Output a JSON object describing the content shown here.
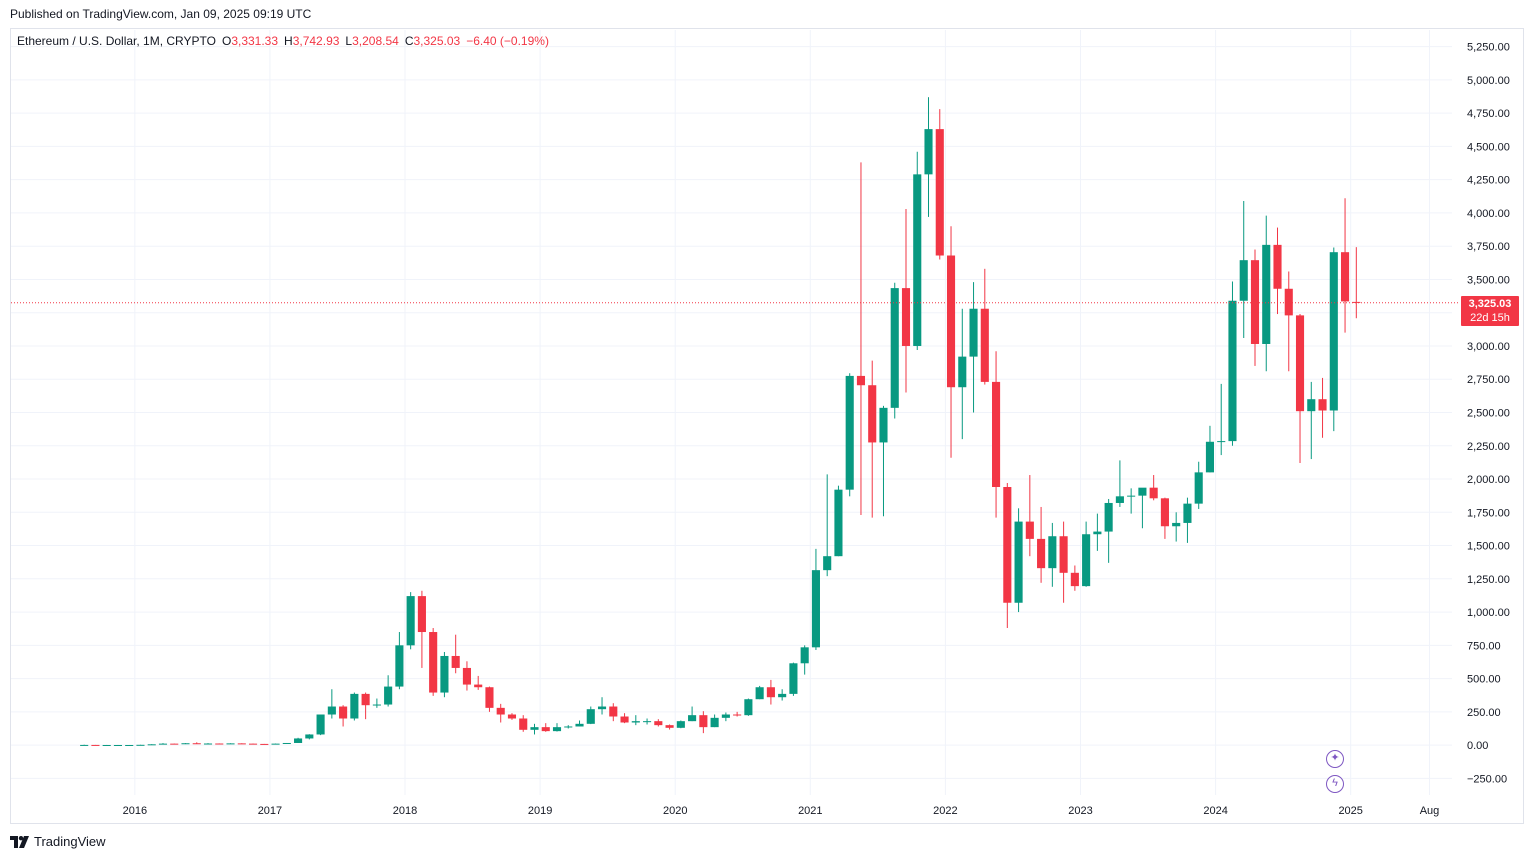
{
  "header": {
    "published": "Published on TradingView.com, Jan 09, 2025 09:19 UTC"
  },
  "legend": {
    "symbol": "Ethereum / U.S. Dollar, 1M, CRYPTO",
    "open_label": "O",
    "open": "3,331.33",
    "high_label": "H",
    "high": "3,742.93",
    "low_label": "L",
    "low": "3,208.54",
    "close_label": "C",
    "close": "3,325.03",
    "change": "−6.40 (−0.19%)"
  },
  "price_badge": {
    "price": "3,325.03",
    "countdown": "22d 15h"
  },
  "brand": {
    "name": "TradingView"
  },
  "icons": {
    "spark_button": "sparkle-icon",
    "lightning_button": "lightning-icon"
  },
  "colors": {
    "up": "#089981",
    "down": "#f23645",
    "grid": "#f0f3fa",
    "text": "#131722",
    "accent": "#7e57c2"
  },
  "chart_data": {
    "type": "candlestick",
    "title": "Ethereum / U.S. Dollar, 1M, CRYPTO",
    "grid": true,
    "ylim": [
      -375,
      5375
    ],
    "y_ticks": [
      -250,
      0,
      250,
      500,
      750,
      1000,
      1250,
      1500,
      1750,
      2000,
      2250,
      2500,
      2750,
      3000,
      3250,
      3500,
      3750,
      4000,
      4250,
      4500,
      4750,
      5000,
      5250
    ],
    "y_tick_labels": [
      "−250.00",
      "0.00",
      "250.00",
      "500.00",
      "750.00",
      "1,000.00",
      "1,250.00",
      "1,500.00",
      "1,750.00",
      "2,000.00",
      "2,250.00",
      "2,500.00",
      "2,750.00",
      "3,000.00",
      "3,250.00",
      "3,500.00",
      "3,750.00",
      "4,000.00",
      "4,250.00",
      "4,500.00",
      "4,750.00",
      "5,000.00",
      "5,250.00"
    ],
    "x_tick_labels": [
      "2016",
      "2017",
      "2018",
      "2019",
      "2020",
      "2021",
      "2022",
      "2023",
      "2024",
      "2025",
      "Aug"
    ],
    "x_tick_months": [
      "2016-01",
      "2017-01",
      "2018-01",
      "2019-01",
      "2020-01",
      "2021-01",
      "2022-01",
      "2023-01",
      "2024-01",
      "2025-01",
      "2025-08"
    ],
    "x_range": [
      "2015-02",
      "2025-10"
    ],
    "last_price": 3325.03,
    "candles": [
      {
        "t": "2015-08",
        "o": 1,
        "h": 3,
        "l": 0.4,
        "c": 1.4
      },
      {
        "t": "2015-09",
        "o": 1.4,
        "h": 1.4,
        "l": 0.5,
        "c": 0.7
      },
      {
        "t": "2015-10",
        "o": 0.7,
        "h": 1.2,
        "l": 0.4,
        "c": 0.9
      },
      {
        "t": "2015-11",
        "o": 0.9,
        "h": 1.1,
        "l": 0.8,
        "c": 0.9
      },
      {
        "t": "2015-12",
        "o": 0.9,
        "h": 1.0,
        "l": 0.8,
        "c": 0.9
      },
      {
        "t": "2016-01",
        "o": 0.9,
        "h": 2.5,
        "l": 0.9,
        "c": 2.2
      },
      {
        "t": "2016-02",
        "o": 2.2,
        "h": 7,
        "l": 2,
        "c": 6
      },
      {
        "t": "2016-03",
        "o": 6,
        "h": 15,
        "l": 6,
        "c": 11
      },
      {
        "t": "2016-04",
        "o": 11,
        "h": 12,
        "l": 7,
        "c": 9
      },
      {
        "t": "2016-05",
        "o": 9,
        "h": 15,
        "l": 8,
        "c": 14
      },
      {
        "t": "2016-06",
        "o": 14,
        "h": 21,
        "l": 11,
        "c": 12
      },
      {
        "t": "2016-07",
        "o": 12,
        "h": 15,
        "l": 10,
        "c": 12
      },
      {
        "t": "2016-08",
        "o": 12,
        "h": 13,
        "l": 10,
        "c": 11
      },
      {
        "t": "2016-09",
        "o": 11,
        "h": 14,
        "l": 11,
        "c": 13
      },
      {
        "t": "2016-10",
        "o": 13,
        "h": 14,
        "l": 10,
        "c": 11
      },
      {
        "t": "2016-11",
        "o": 11,
        "h": 12,
        "l": 8,
        "c": 9
      },
      {
        "t": "2016-12",
        "o": 9,
        "h": 9,
        "l": 6,
        "c": 8
      },
      {
        "t": "2017-01",
        "o": 8,
        "h": 12,
        "l": 8,
        "c": 11
      },
      {
        "t": "2017-02",
        "o": 11,
        "h": 16,
        "l": 10,
        "c": 16
      },
      {
        "t": "2017-03",
        "o": 16,
        "h": 55,
        "l": 16,
        "c": 50
      },
      {
        "t": "2017-04",
        "o": 50,
        "h": 82,
        "l": 43,
        "c": 80
      },
      {
        "t": "2017-05",
        "o": 80,
        "h": 230,
        "l": 75,
        "c": 230
      },
      {
        "t": "2017-06",
        "o": 230,
        "h": 420,
        "l": 200,
        "c": 290
      },
      {
        "t": "2017-07",
        "o": 290,
        "h": 300,
        "l": 140,
        "c": 200
      },
      {
        "t": "2017-08",
        "o": 200,
        "h": 395,
        "l": 185,
        "c": 385
      },
      {
        "t": "2017-09",
        "o": 385,
        "h": 395,
        "l": 195,
        "c": 300
      },
      {
        "t": "2017-10",
        "o": 300,
        "h": 350,
        "l": 280,
        "c": 305
      },
      {
        "t": "2017-11",
        "o": 305,
        "h": 525,
        "l": 290,
        "c": 440
      },
      {
        "t": "2017-12",
        "o": 440,
        "h": 850,
        "l": 420,
        "c": 750
      },
      {
        "t": "2018-01",
        "o": 750,
        "h": 1150,
        "l": 720,
        "c": 1120
      },
      {
        "t": "2018-02",
        "o": 1120,
        "h": 1160,
        "l": 580,
        "c": 850
      },
      {
        "t": "2018-03",
        "o": 850,
        "h": 880,
        "l": 370,
        "c": 395
      },
      {
        "t": "2018-04",
        "o": 395,
        "h": 700,
        "l": 360,
        "c": 670
      },
      {
        "t": "2018-05",
        "o": 670,
        "h": 830,
        "l": 540,
        "c": 580
      },
      {
        "t": "2018-06",
        "o": 580,
        "h": 630,
        "l": 410,
        "c": 455
      },
      {
        "t": "2018-07",
        "o": 455,
        "h": 520,
        "l": 415,
        "c": 435
      },
      {
        "t": "2018-08",
        "o": 435,
        "h": 440,
        "l": 250,
        "c": 280
      },
      {
        "t": "2018-09",
        "o": 280,
        "h": 310,
        "l": 170,
        "c": 230
      },
      {
        "t": "2018-10",
        "o": 230,
        "h": 240,
        "l": 190,
        "c": 200
      },
      {
        "t": "2018-11",
        "o": 200,
        "h": 225,
        "l": 100,
        "c": 115
      },
      {
        "t": "2018-12",
        "o": 115,
        "h": 160,
        "l": 80,
        "c": 135
      },
      {
        "t": "2019-01",
        "o": 135,
        "h": 165,
        "l": 100,
        "c": 105
      },
      {
        "t": "2019-02",
        "o": 105,
        "h": 165,
        "l": 102,
        "c": 135
      },
      {
        "t": "2019-03",
        "o": 135,
        "h": 150,
        "l": 125,
        "c": 140
      },
      {
        "t": "2019-04",
        "o": 140,
        "h": 185,
        "l": 140,
        "c": 160
      },
      {
        "t": "2019-05",
        "o": 160,
        "h": 290,
        "l": 158,
        "c": 270
      },
      {
        "t": "2019-06",
        "o": 270,
        "h": 360,
        "l": 230,
        "c": 290
      },
      {
        "t": "2019-07",
        "o": 290,
        "h": 315,
        "l": 180,
        "c": 215
      },
      {
        "t": "2019-08",
        "o": 215,
        "h": 240,
        "l": 165,
        "c": 170
      },
      {
        "t": "2019-09",
        "o": 170,
        "h": 225,
        "l": 150,
        "c": 180
      },
      {
        "t": "2019-10",
        "o": 180,
        "h": 200,
        "l": 155,
        "c": 180
      },
      {
        "t": "2019-11",
        "o": 180,
        "h": 195,
        "l": 140,
        "c": 150
      },
      {
        "t": "2019-12",
        "o": 150,
        "h": 155,
        "l": 117,
        "c": 130
      },
      {
        "t": "2020-01",
        "o": 130,
        "h": 185,
        "l": 127,
        "c": 180
      },
      {
        "t": "2020-02",
        "o": 180,
        "h": 290,
        "l": 180,
        "c": 225
      },
      {
        "t": "2020-03",
        "o": 225,
        "h": 255,
        "l": 90,
        "c": 135
      },
      {
        "t": "2020-04",
        "o": 135,
        "h": 230,
        "l": 135,
        "c": 205
      },
      {
        "t": "2020-05",
        "o": 205,
        "h": 245,
        "l": 180,
        "c": 230
      },
      {
        "t": "2020-06",
        "o": 230,
        "h": 250,
        "l": 215,
        "c": 225
      },
      {
        "t": "2020-07",
        "o": 225,
        "h": 350,
        "l": 220,
        "c": 345
      },
      {
        "t": "2020-08",
        "o": 345,
        "h": 445,
        "l": 345,
        "c": 435
      },
      {
        "t": "2020-09",
        "o": 435,
        "h": 490,
        "l": 305,
        "c": 360
      },
      {
        "t": "2020-10",
        "o": 360,
        "h": 420,
        "l": 335,
        "c": 385
      },
      {
        "t": "2020-11",
        "o": 385,
        "h": 620,
        "l": 370,
        "c": 615
      },
      {
        "t": "2020-12",
        "o": 615,
        "h": 750,
        "l": 530,
        "c": 735
      },
      {
        "t": "2021-01",
        "o": 735,
        "h": 1475,
        "l": 715,
        "c": 1315
      },
      {
        "t": "2021-02",
        "o": 1315,
        "h": 2035,
        "l": 1270,
        "c": 1420
      },
      {
        "t": "2021-03",
        "o": 1420,
        "h": 1950,
        "l": 1420,
        "c": 1920
      },
      {
        "t": "2021-04",
        "o": 1920,
        "h": 2795,
        "l": 1870,
        "c": 2775
      },
      {
        "t": "2021-05",
        "o": 2775,
        "h": 4380,
        "l": 1730,
        "c": 2705
      },
      {
        "t": "2021-06",
        "o": 2705,
        "h": 2890,
        "l": 1710,
        "c": 2275
      },
      {
        "t": "2021-07",
        "o": 2275,
        "h": 2550,
        "l": 1720,
        "c": 2535
      },
      {
        "t": "2021-08",
        "o": 2535,
        "h": 3475,
        "l": 2455,
        "c": 3435
      },
      {
        "t": "2021-09",
        "o": 3435,
        "h": 4030,
        "l": 2650,
        "c": 3000
      },
      {
        "t": "2021-10",
        "o": 3000,
        "h": 4460,
        "l": 2970,
        "c": 4290
      },
      {
        "t": "2021-11",
        "o": 4290,
        "h": 4870,
        "l": 3970,
        "c": 4630
      },
      {
        "t": "2021-12",
        "o": 4630,
        "h": 4780,
        "l": 3650,
        "c": 3680
      },
      {
        "t": "2022-01",
        "o": 3680,
        "h": 3900,
        "l": 2160,
        "c": 2690
      },
      {
        "t": "2022-02",
        "o": 2690,
        "h": 3280,
        "l": 2300,
        "c": 2920
      },
      {
        "t": "2022-03",
        "o": 2920,
        "h": 3480,
        "l": 2500,
        "c": 3280
      },
      {
        "t": "2022-04",
        "o": 3280,
        "h": 3580,
        "l": 2710,
        "c": 2730
      },
      {
        "t": "2022-05",
        "o": 2730,
        "h": 2960,
        "l": 1710,
        "c": 1940
      },
      {
        "t": "2022-06",
        "o": 1940,
        "h": 1970,
        "l": 880,
        "c": 1070
      },
      {
        "t": "2022-07",
        "o": 1070,
        "h": 1780,
        "l": 1000,
        "c": 1680
      },
      {
        "t": "2022-08",
        "o": 1680,
        "h": 2030,
        "l": 1420,
        "c": 1550
      },
      {
        "t": "2022-09",
        "o": 1550,
        "h": 1790,
        "l": 1220,
        "c": 1330
      },
      {
        "t": "2022-10",
        "o": 1330,
        "h": 1670,
        "l": 1190,
        "c": 1570
      },
      {
        "t": "2022-11",
        "o": 1570,
        "h": 1680,
        "l": 1070,
        "c": 1295
      },
      {
        "t": "2022-12",
        "o": 1295,
        "h": 1350,
        "l": 1160,
        "c": 1195
      },
      {
        "t": "2023-01",
        "o": 1195,
        "h": 1680,
        "l": 1190,
        "c": 1585
      },
      {
        "t": "2023-02",
        "o": 1585,
        "h": 1740,
        "l": 1460,
        "c": 1605
      },
      {
        "t": "2023-03",
        "o": 1605,
        "h": 1850,
        "l": 1370,
        "c": 1820
      },
      {
        "t": "2023-04",
        "o": 1820,
        "h": 2140,
        "l": 1790,
        "c": 1870
      },
      {
        "t": "2023-05",
        "o": 1870,
        "h": 1930,
        "l": 1740,
        "c": 1875
      },
      {
        "t": "2023-06",
        "o": 1875,
        "h": 1930,
        "l": 1630,
        "c": 1935
      },
      {
        "t": "2023-07",
        "o": 1935,
        "h": 2030,
        "l": 1840,
        "c": 1855
      },
      {
        "t": "2023-08",
        "o": 1855,
        "h": 1860,
        "l": 1550,
        "c": 1645
      },
      {
        "t": "2023-09",
        "o": 1645,
        "h": 1750,
        "l": 1530,
        "c": 1670
      },
      {
        "t": "2023-10",
        "o": 1670,
        "h": 1860,
        "l": 1520,
        "c": 1815
      },
      {
        "t": "2023-11",
        "o": 1815,
        "h": 2130,
        "l": 1775,
        "c": 2050
      },
      {
        "t": "2023-12",
        "o": 2050,
        "h": 2400,
        "l": 2050,
        "c": 2280
      },
      {
        "t": "2024-01",
        "o": 2280,
        "h": 2715,
        "l": 2180,
        "c": 2285
      },
      {
        "t": "2024-02",
        "o": 2285,
        "h": 3485,
        "l": 2250,
        "c": 3340
      },
      {
        "t": "2024-03",
        "o": 3340,
        "h": 4090,
        "l": 3060,
        "c": 3645
      },
      {
        "t": "2024-04",
        "o": 3645,
        "h": 3725,
        "l": 2850,
        "c": 3015
      },
      {
        "t": "2024-05",
        "o": 3015,
        "h": 3980,
        "l": 2810,
        "c": 3760
      },
      {
        "t": "2024-06",
        "o": 3760,
        "h": 3890,
        "l": 3240,
        "c": 3430
      },
      {
        "t": "2024-07",
        "o": 3430,
        "h": 3560,
        "l": 2810,
        "c": 3230
      },
      {
        "t": "2024-08",
        "o": 3230,
        "h": 3240,
        "l": 2120,
        "c": 2510
      },
      {
        "t": "2024-09",
        "o": 2510,
        "h": 2730,
        "l": 2150,
        "c": 2600
      },
      {
        "t": "2024-10",
        "o": 2600,
        "h": 2760,
        "l": 2310,
        "c": 2515
      },
      {
        "t": "2024-11",
        "o": 2515,
        "h": 3740,
        "l": 2360,
        "c": 3705
      },
      {
        "t": "2024-12",
        "o": 3705,
        "h": 4110,
        "l": 3100,
        "c": 3335
      },
      {
        "t": "2025-01",
        "o": 3331.33,
        "h": 3742.93,
        "l": 3208.54,
        "c": 3325.03
      }
    ]
  }
}
